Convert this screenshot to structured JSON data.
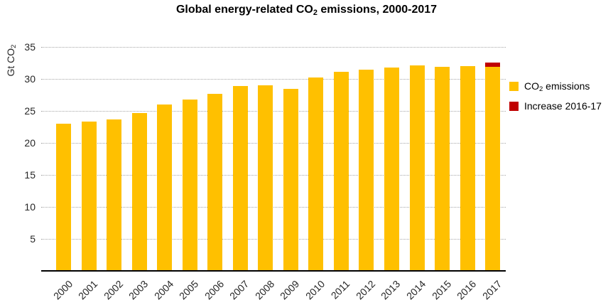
{
  "title": {
    "prefix": "Global energy-related CO",
    "sub": "2",
    "suffix": " emissions, 2000-2017"
  },
  "y_axis": {
    "label_prefix": "Gt CO",
    "label_sub": "2"
  },
  "legend": {
    "co2": {
      "prefix": "CO",
      "sub": "2",
      "suffix": " emissions",
      "color": "#FFC000"
    },
    "increase": {
      "label": "Increase 2016-17",
      "color": "#C00000"
    }
  },
  "colors": {
    "bar": "#FFC000",
    "increase": "#C00000",
    "gridline": "#A6A6A6",
    "axis": "#000000",
    "text": "#262626"
  },
  "chart_data": {
    "type": "bar",
    "stacked": true,
    "title": "Global energy-related CO2 emissions, 2000-2017",
    "ylabel": "Gt CO2",
    "categories": [
      "2000",
      "2001",
      "2002",
      "2003",
      "2004",
      "2005",
      "2006",
      "2007",
      "2008",
      "2009",
      "2010",
      "2011",
      "2012",
      "2013",
      "2014",
      "2015",
      "2016",
      "2017"
    ],
    "series": [
      {
        "name": "CO2 emissions",
        "color": "#FFC000",
        "values": [
          23.0,
          23.3,
          23.7,
          24.7,
          26.0,
          26.8,
          27.7,
          28.9,
          29.0,
          28.5,
          30.2,
          31.1,
          31.4,
          31.8,
          32.1,
          31.9,
          32.0,
          31.9
        ]
      },
      {
        "name": "Increase 2016-17",
        "color": "#C00000",
        "values": [
          0,
          0,
          0,
          0,
          0,
          0,
          0,
          0,
          0,
          0,
          0,
          0,
          0,
          0,
          0,
          0,
          0,
          0.7
        ]
      }
    ],
    "yticks": [
      5,
      10,
      15,
      20,
      25,
      30,
      35
    ],
    "ylim": [
      0,
      35
    ],
    "grid": "horizontal-dotted",
    "legend_position": "right"
  }
}
